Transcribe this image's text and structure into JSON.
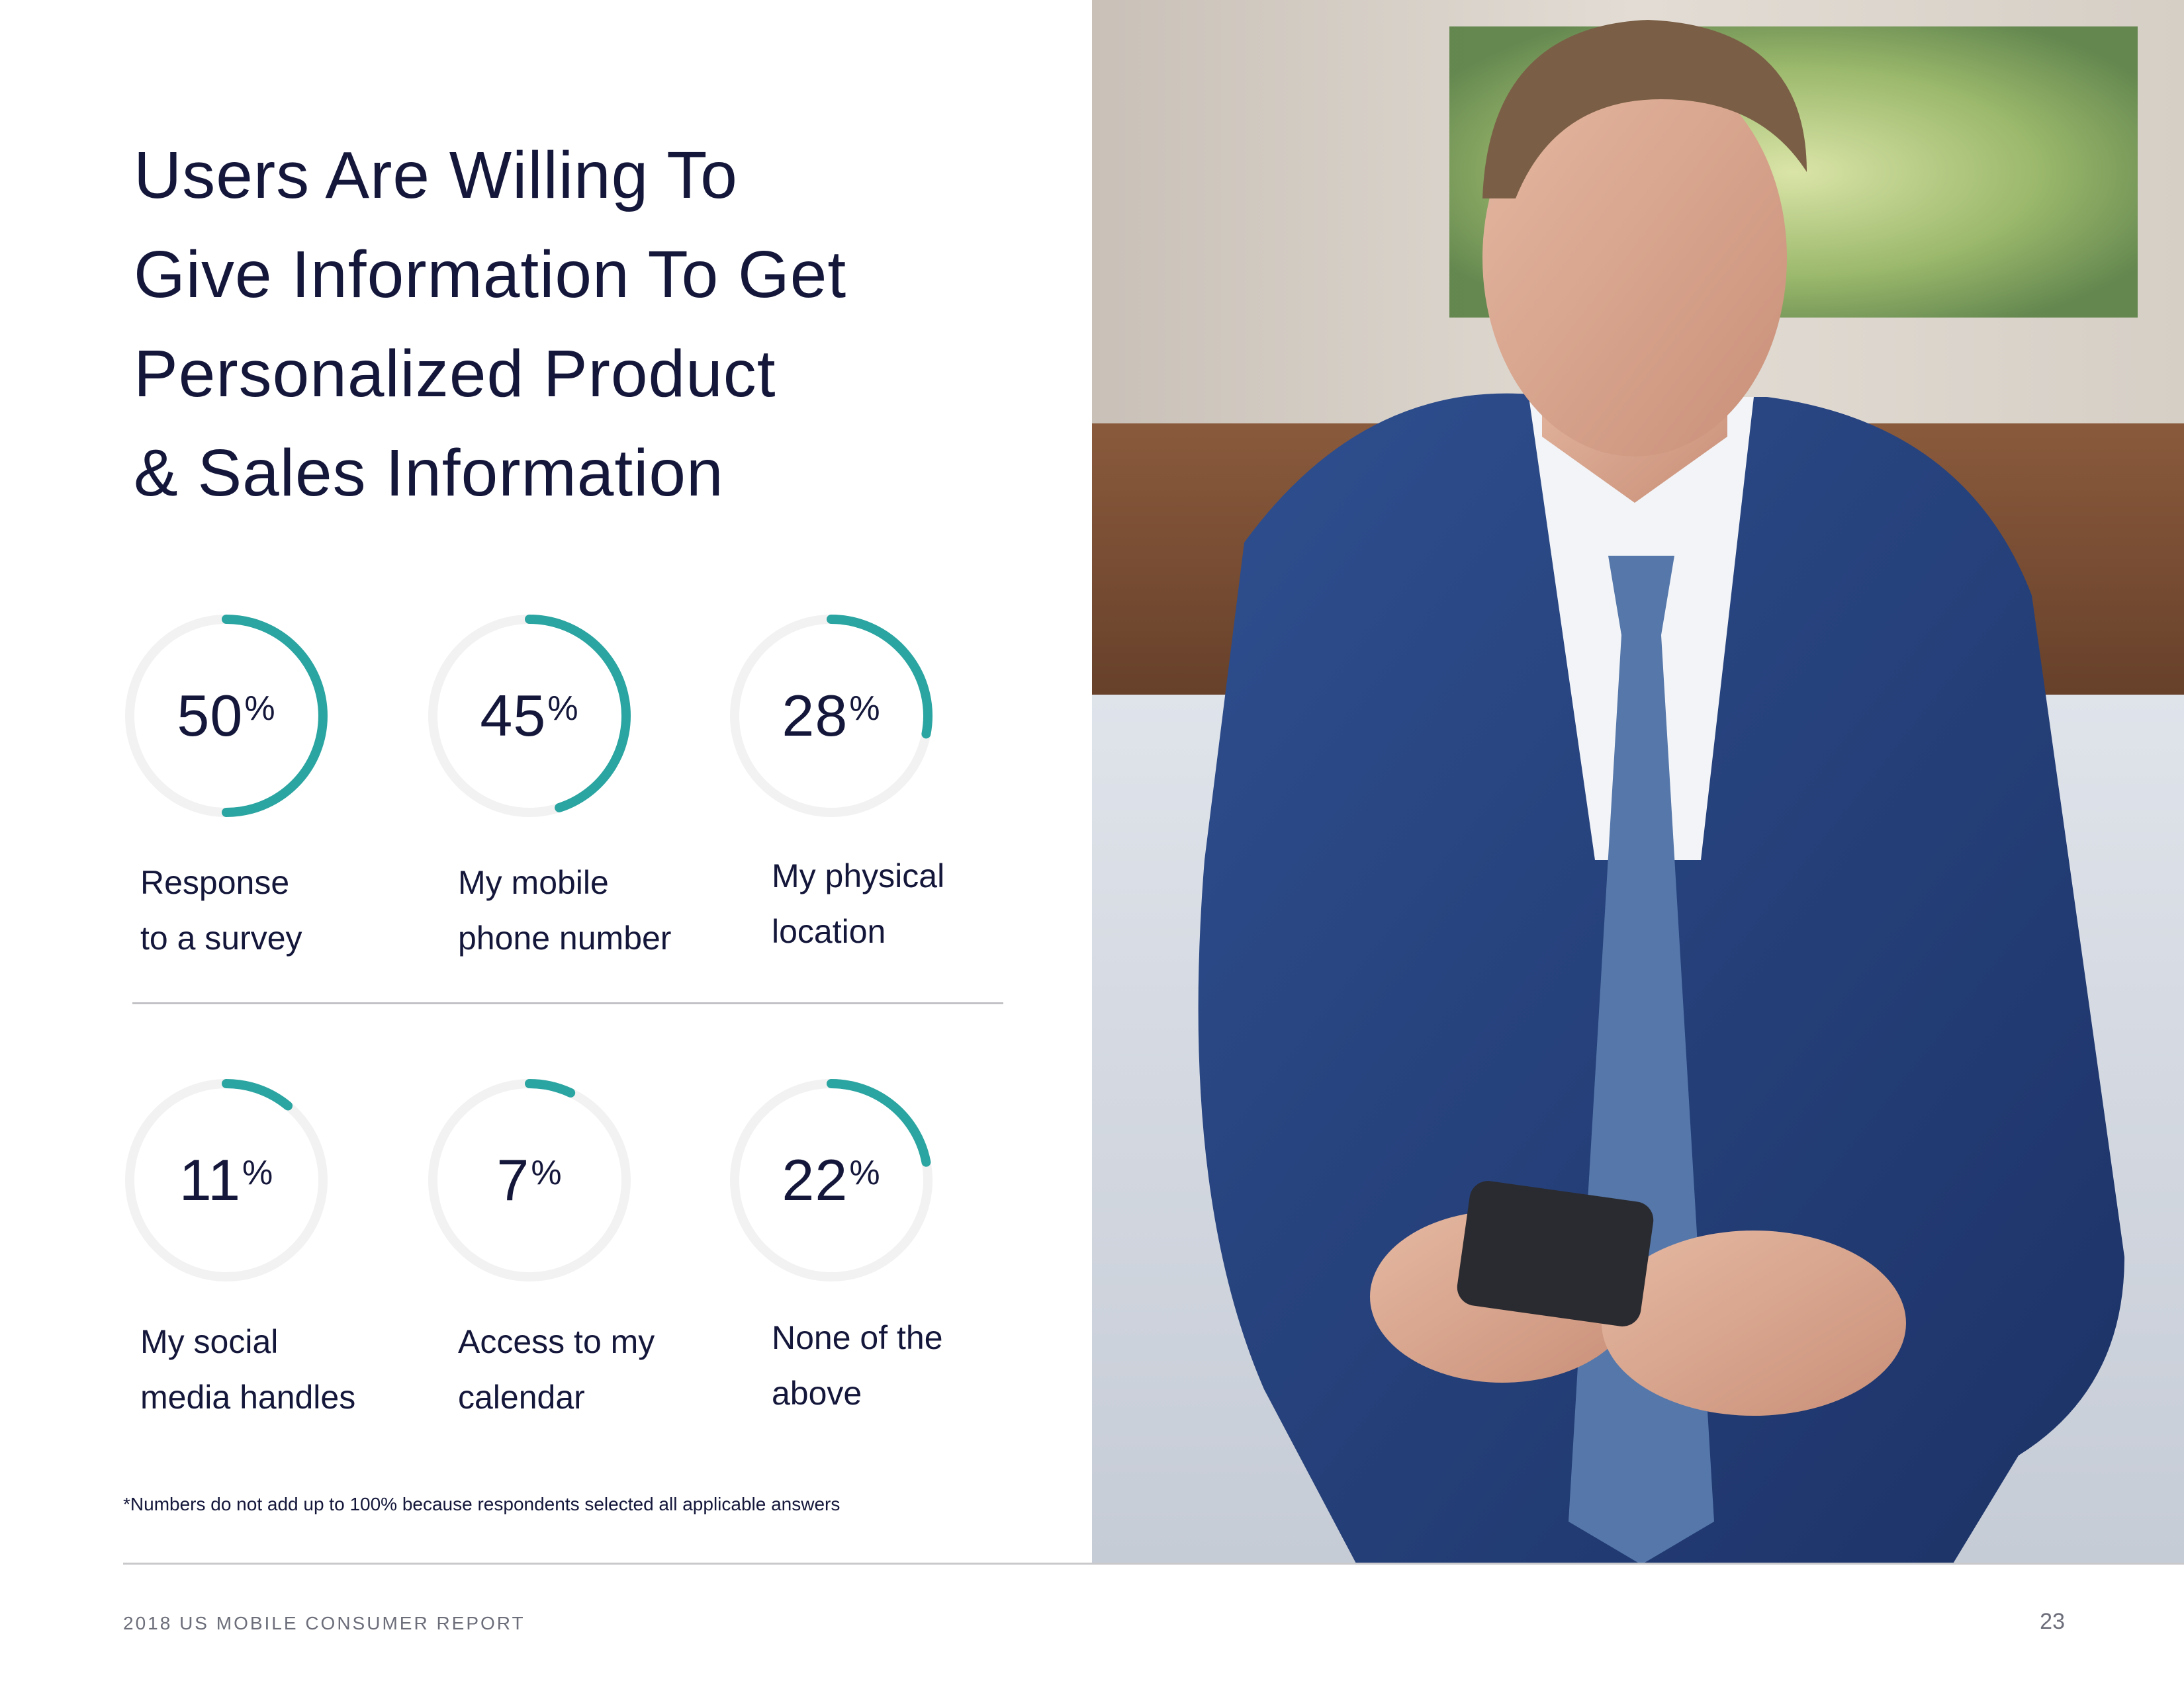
{
  "title_lines": [
    "Users Are Willing To",
    "Give Information To Get",
    "Personalized Product",
    "& Sales Information"
  ],
  "stats": [
    {
      "value": "50",
      "unit": "%",
      "fraction": 0.5,
      "label_lines": [
        "Response",
        "to a survey"
      ]
    },
    {
      "value": "45",
      "unit": "%",
      "fraction": 0.45,
      "label_lines": [
        "My mobile",
        "phone number"
      ]
    },
    {
      "value": "28",
      "unit": "%",
      "fraction": 0.28,
      "label_lines": [
        "My physical",
        "location"
      ]
    },
    {
      "value": "11",
      "unit": "%",
      "fraction": 0.11,
      "label_lines": [
        "My social",
        "media handles"
      ]
    },
    {
      "value": "7",
      "unit": "%",
      "fraction": 0.07,
      "label_lines": [
        "Access to my",
        "calendar"
      ]
    },
    {
      "value": "22",
      "unit": "%",
      "fraction": 0.22,
      "label_lines": [
        "None of the",
        "above"
      ]
    }
  ],
  "footnote": "*Numbers do not add up to 100% because respondents selected all applicable answers",
  "footer": {
    "report": "2018 US MOBILE CONSUMER REPORT",
    "page": "23"
  },
  "colors": {
    "accent": "#2aa5a1",
    "track": "#f2f2f2",
    "text": "#14173a",
    "muted": "#6c6e7a"
  },
  "photo": {
    "icon": "businessman-photo",
    "subject": "man-in-suit-holding-phone"
  }
}
